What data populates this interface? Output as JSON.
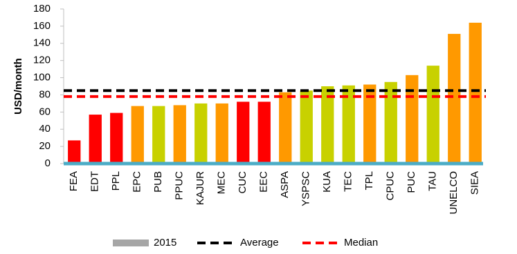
{
  "chart_data": {
    "type": "bar",
    "y_label": "USD/month",
    "categories": [
      "FEA",
      "EDT",
      "PPL",
      "EPC",
      "PUB",
      "PPUC",
      "KAJUR",
      "MEC",
      "CUC",
      "EEC",
      "ASPA",
      "YSPSC",
      "KUA",
      "TEC",
      "TPL",
      "CPUC",
      "PUC",
      "TAU",
      "UNELCO",
      "SIEA"
    ],
    "series": [
      {
        "name": "2015",
        "color": "#a6a6a6",
        "values": [
          27,
          57,
          59,
          67,
          67,
          68,
          70,
          70,
          72,
          72,
          83,
          85,
          90,
          91,
          92,
          95,
          103,
          114,
          151,
          164
        ],
        "bar_colors": [
          "#ff0000",
          "#ff0000",
          "#ff0000",
          "#ff9900",
          "#c8d100",
          "#ff9900",
          "#c8d100",
          "#ff9900",
          "#ff0000",
          "#ff0000",
          "#ff9900",
          "#c8d100",
          "#c8d100",
          "#c8d100",
          "#ff9900",
          "#c8d100",
          "#ff9900",
          "#c8d100",
          "#ff9900",
          "#ff9900"
        ]
      }
    ],
    "reference_lines": [
      {
        "name": "Average",
        "value": 85,
        "color": "#000000"
      },
      {
        "name": "Median",
        "value": 78,
        "color": "#ff0000"
      }
    ],
    "ylim": [
      0,
      180
    ],
    "yticks": [
      0,
      20,
      40,
      60,
      80,
      100,
      120,
      140,
      160,
      180
    ],
    "baseline_color": "#4bacc6",
    "grid": false
  }
}
